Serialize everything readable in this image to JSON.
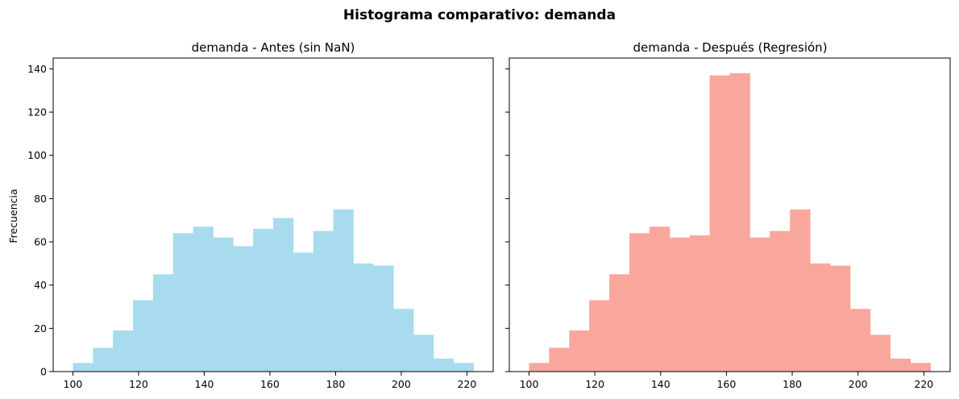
{
  "suptitle": "Histograma comparativo: demanda",
  "chart_data": [
    {
      "type": "bar",
      "title": "demanda - Antes (sin NaN)",
      "xlabel": "",
      "ylabel": "Frecuencia",
      "color": "#a8dbee",
      "bin_edges": [
        100,
        106.1,
        112.2,
        118.3,
        124.4,
        130.5,
        136.6,
        142.7,
        148.8,
        154.9,
        161,
        167.1,
        173.2,
        179.3,
        185.4,
        191.5,
        197.6,
        203.7,
        209.8,
        215.9,
        222
      ],
      "values": [
        4,
        11,
        19,
        33,
        45,
        64,
        67,
        62,
        58,
        66,
        71,
        55,
        65,
        75,
        50,
        49,
        29,
        17,
        6,
        4
      ],
      "xlim": [
        94,
        228
      ],
      "ylim": [
        0,
        145
      ],
      "xticks": [
        "100",
        "120",
        "140",
        "160",
        "180",
        "200",
        "220"
      ],
      "yticks": [
        "0",
        "20",
        "40",
        "60",
        "80",
        "100",
        "120",
        "140"
      ],
      "grid": false,
      "legend": "none"
    },
    {
      "type": "bar",
      "title": "demanda - Después (Regresión)",
      "xlabel": "",
      "ylabel": "",
      "color": "#f9a69c",
      "bin_edges": [
        100,
        106.1,
        112.2,
        118.3,
        124.4,
        130.5,
        136.6,
        142.7,
        148.8,
        154.9,
        161,
        167.1,
        173.2,
        179.3,
        185.4,
        191.5,
        197.6,
        203.7,
        209.8,
        215.9,
        222
      ],
      "values": [
        4,
        11,
        19,
        33,
        45,
        64,
        67,
        62,
        63,
        137,
        138,
        62,
        65,
        75,
        50,
        49,
        29,
        17,
        6,
        4
      ],
      "xlim": [
        94,
        228
      ],
      "ylim": [
        0,
        145
      ],
      "xticks": [
        "100",
        "120",
        "140",
        "160",
        "180",
        "200",
        "220"
      ],
      "yticks": [],
      "grid": false,
      "legend": "none"
    }
  ]
}
